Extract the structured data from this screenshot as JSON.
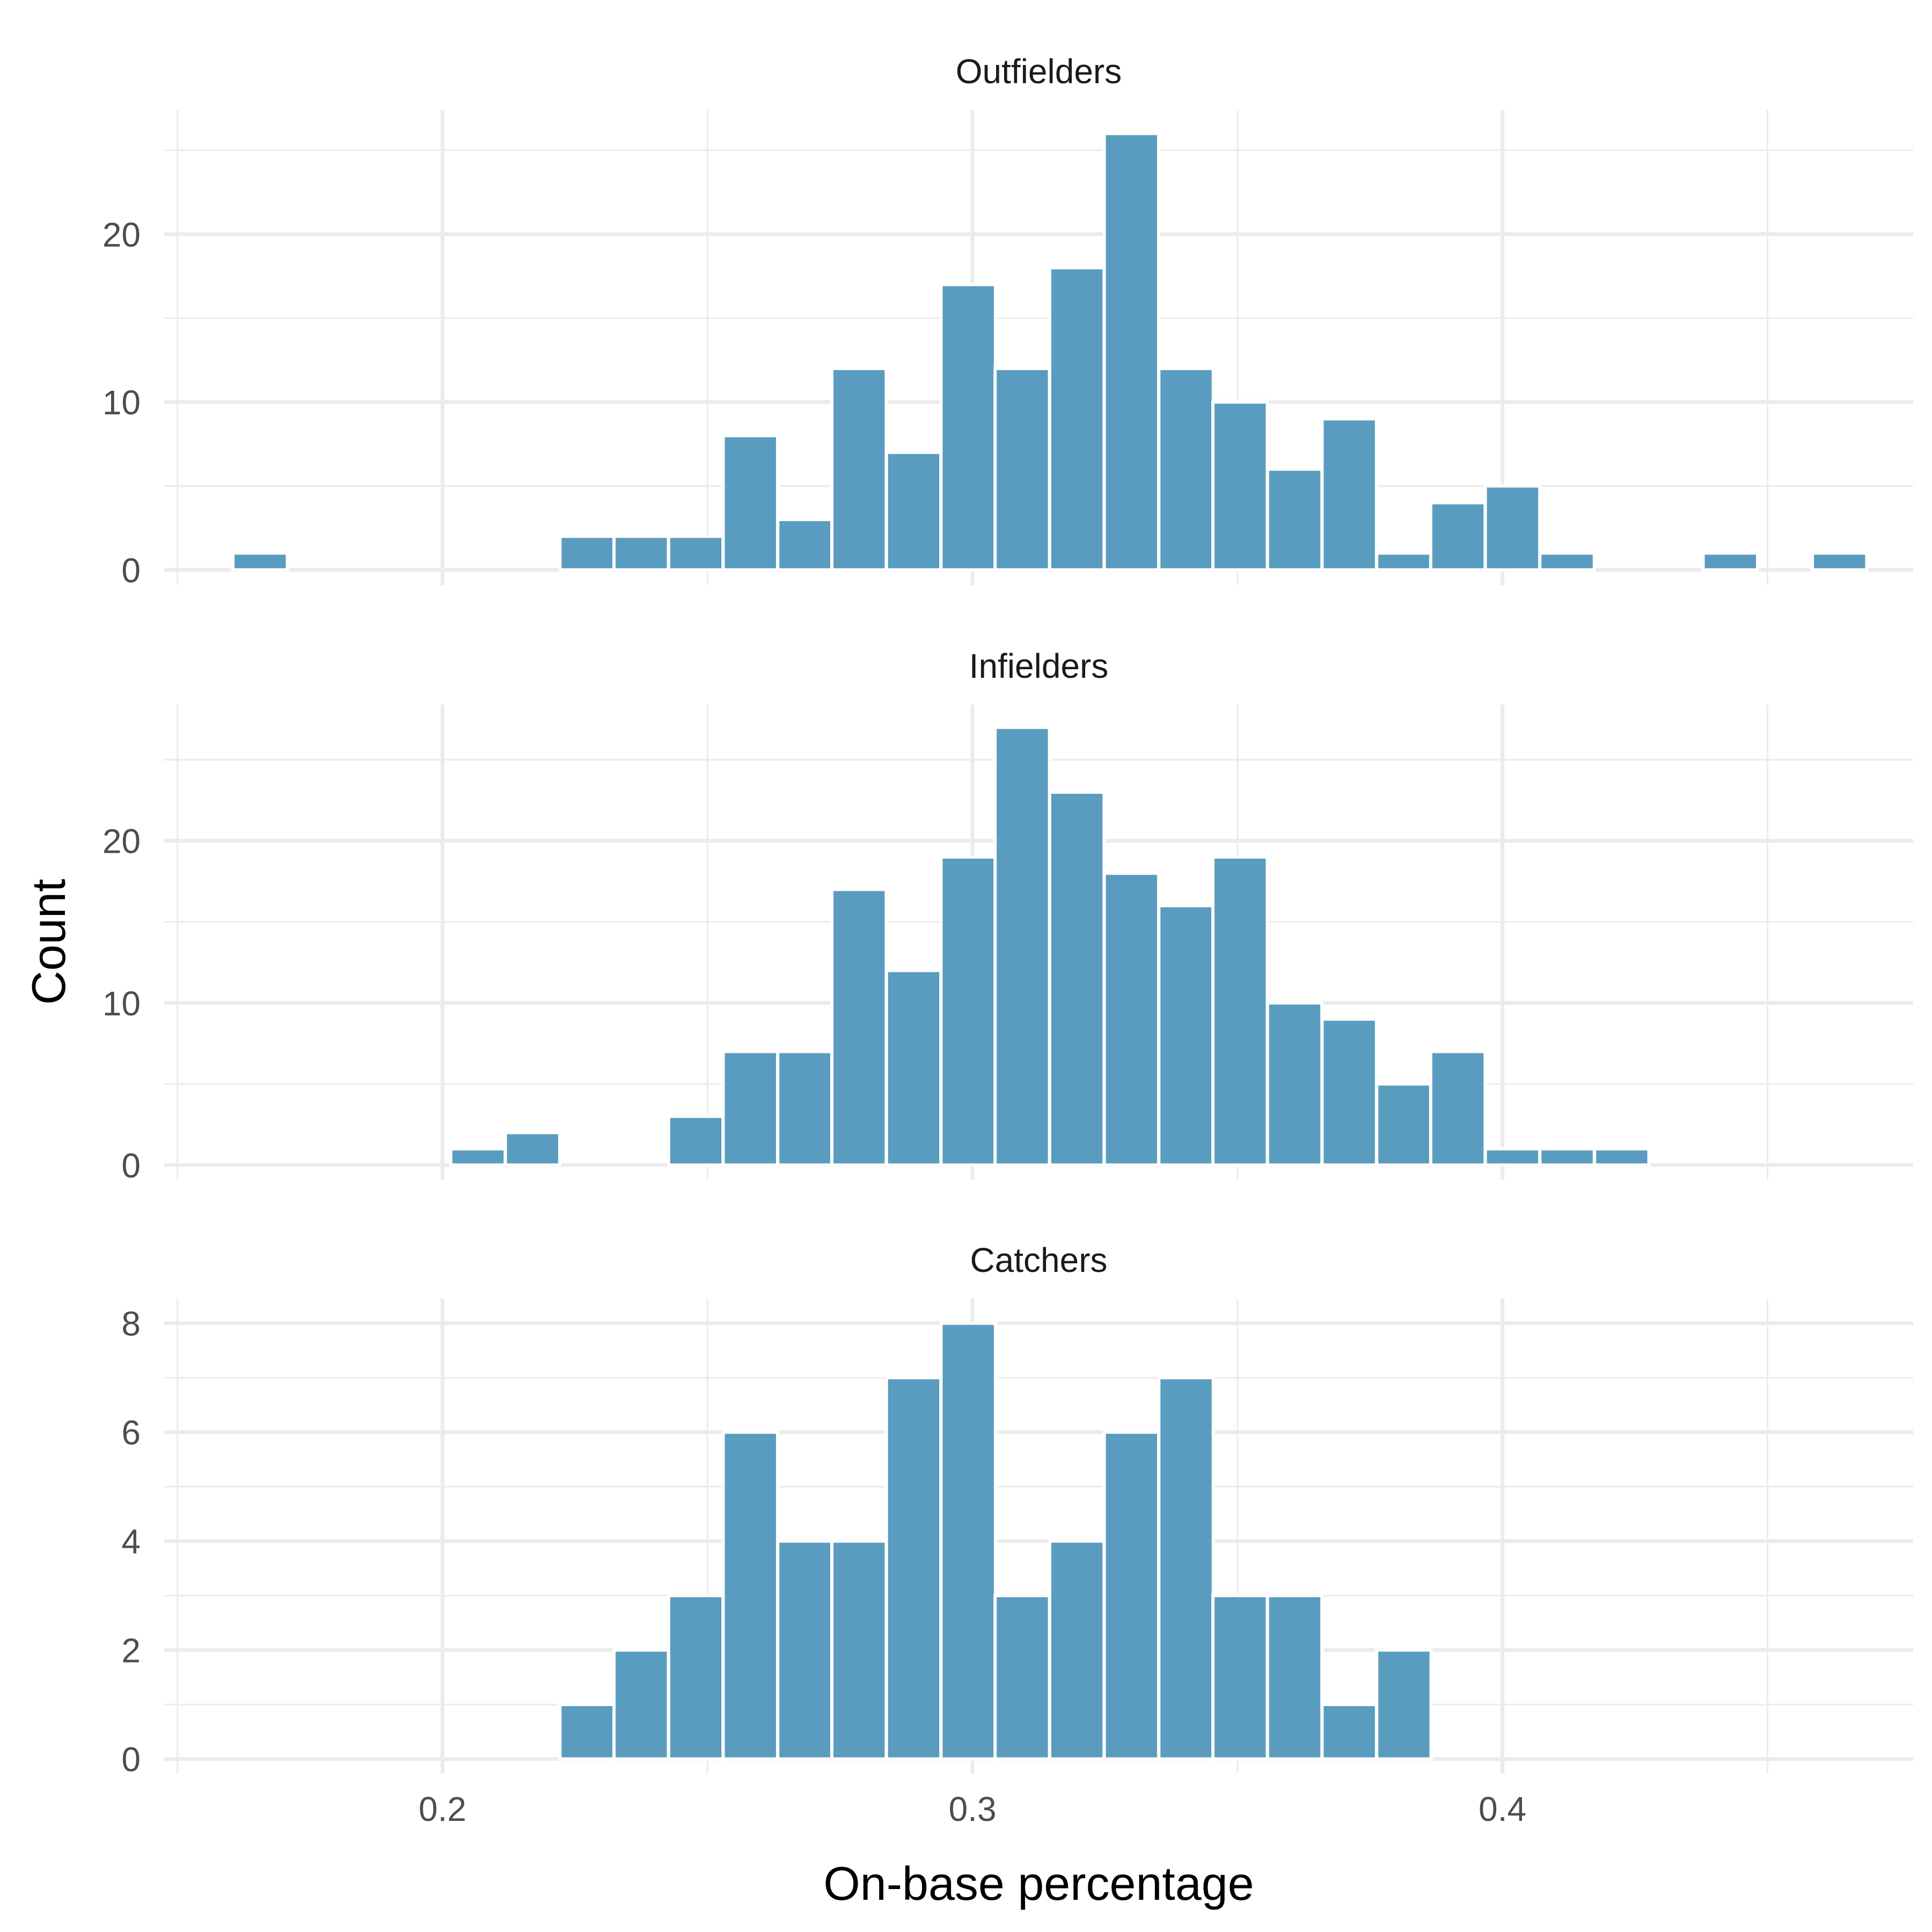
{
  "chart_data": {
    "type": "bar",
    "xlabel": "On-base percentage",
    "ylabel": "Count",
    "xlim": [
      0.1475,
      0.4775
    ],
    "x_ticks": [
      0.2,
      0.3,
      0.4
    ],
    "x_tick_labels": [
      "0.2",
      "0.3",
      "0.4"
    ],
    "bin_width": 0.01027,
    "bin_centers": [
      0.1656,
      0.1759,
      0.1862,
      0.1964,
      0.2067,
      0.217,
      0.2273,
      0.2375,
      0.2478,
      0.2581,
      0.2684,
      0.2786,
      0.2889,
      0.2992,
      0.3094,
      0.3197,
      0.33,
      0.3403,
      0.3505,
      0.3608,
      0.3711,
      0.3814,
      0.3916,
      0.4019,
      0.4122,
      0.4225,
      0.4327,
      0.443,
      0.4533,
      0.4636
    ],
    "grid": true,
    "bar_color": "#5A9CBF",
    "panels": [
      {
        "title": "Outfielders",
        "ylim": [
          -0.9,
          27.4
        ],
        "y_ticks": [
          0,
          10,
          20
        ],
        "y_tick_labels": [
          "0",
          "10",
          "20"
        ],
        "values": [
          1,
          0,
          0,
          0,
          0,
          0,
          2,
          2,
          2,
          8,
          3,
          12,
          7,
          17,
          12,
          18,
          26,
          12,
          10,
          6,
          9,
          1,
          4,
          5,
          1,
          0,
          0,
          1,
          0,
          1
        ]
      },
      {
        "title": "Infielders",
        "ylim": [
          -0.9,
          28.4
        ],
        "y_ticks": [
          0,
          10,
          20
        ],
        "y_tick_labels": [
          "0",
          "10",
          "20"
        ],
        "values": [
          0,
          0,
          0,
          0,
          1,
          2,
          0,
          0,
          3,
          7,
          7,
          17,
          12,
          19,
          27,
          23,
          18,
          16,
          19,
          10,
          9,
          5,
          7,
          1,
          1,
          1,
          0,
          0,
          0,
          0
        ]
      },
      {
        "title": "Catchers",
        "ylim": [
          -0.27,
          8.45
        ],
        "y_ticks": [
          0,
          2,
          4,
          6,
          8
        ],
        "y_tick_labels": [
          "0",
          "2",
          "4",
          "6",
          "8"
        ],
        "values": [
          0,
          0,
          0,
          0,
          0,
          0,
          1,
          2,
          3,
          6,
          4,
          4,
          7,
          8,
          3,
          4,
          6,
          7,
          3,
          3,
          1,
          2,
          0,
          0,
          0,
          0,
          0,
          0,
          0,
          0
        ]
      }
    ]
  }
}
